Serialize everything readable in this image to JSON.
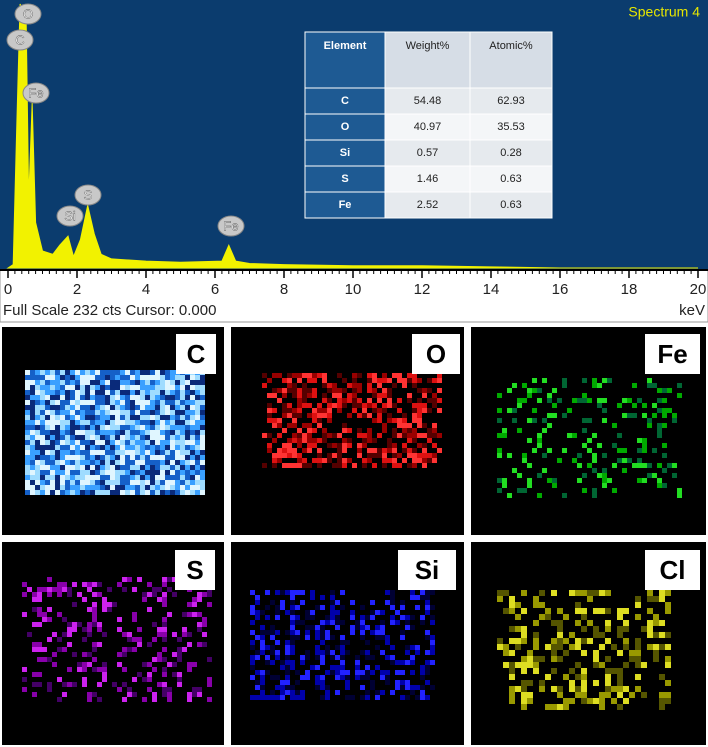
{
  "chart_data": {
    "type": "line",
    "title": "Spectrum 4",
    "x": [
      0,
      0.15,
      0.25,
      0.35,
      0.45,
      0.52,
      0.6,
      0.7,
      0.8,
      1.0,
      1.3,
      1.5,
      1.74,
      1.9,
      2.1,
      2.31,
      2.5,
      2.7,
      3.0,
      4,
      5,
      6.2,
      6.4,
      6.6,
      7,
      8,
      10,
      12,
      14,
      16,
      20
    ],
    "series": [
      {
        "name": "Spectrum 4",
        "color": "#f2f200",
        "values": [
          0,
          3,
          120,
          232,
          225,
          232,
          60,
          145,
          40,
          15,
          12,
          20,
          28,
          10,
          25,
          55,
          30,
          12,
          8,
          6,
          5,
          6,
          20,
          6,
          4,
          3,
          2,
          2,
          1,
          0,
          0
        ]
      }
    ],
    "xlim": [
      0,
      20
    ],
    "xticks": [
      0,
      2,
      4,
      6,
      8,
      10,
      12,
      14,
      16,
      18,
      20
    ],
    "ylim": [
      0,
      232
    ],
    "xlabel": "keV",
    "footer": "Full Scale 232 cts Cursor: 0.000",
    "annotations": [
      "O",
      "C",
      "Fe",
      "Si",
      "S",
      "Fe"
    ]
  },
  "table": {
    "header": [
      "Element",
      "Weight%",
      "Atomic%"
    ],
    "rows": [
      [
        "C",
        54.48,
        62.93
      ],
      [
        "O",
        40.97,
        35.53
      ],
      [
        "Si",
        0.57,
        0.28
      ],
      [
        "S",
        1.46,
        0.63
      ],
      [
        "Fe",
        2.52,
        0.63
      ]
    ]
  },
  "maps": [
    "C",
    "O",
    "Fe",
    "S",
    "Si",
    "Cl"
  ]
}
